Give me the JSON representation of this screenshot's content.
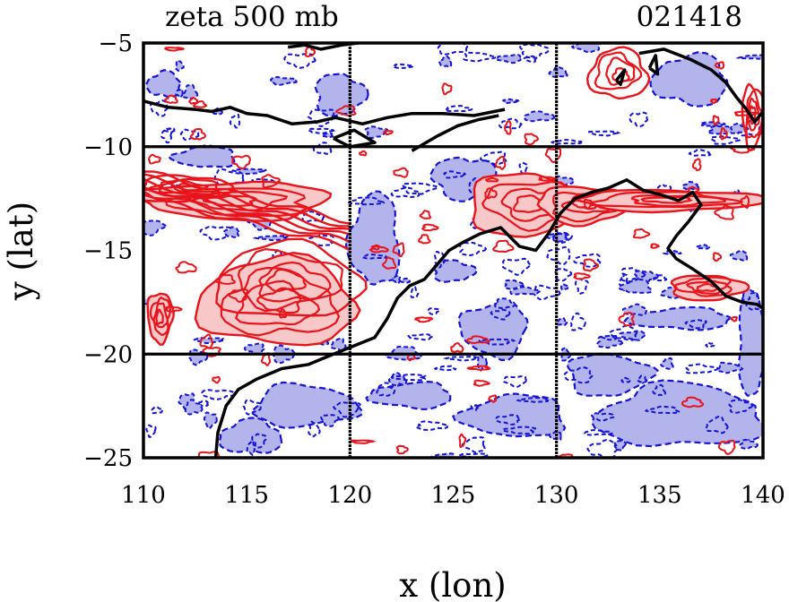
{
  "chart_data": {
    "type": "contour",
    "title_left": "zeta 500 mb",
    "title_right": "021418",
    "xlabel": "x (lon)",
    "ylabel": "y (lat)",
    "xlim": [
      110,
      140
    ],
    "ylim": [
      -25,
      -5
    ],
    "xticks": [
      110,
      115,
      120,
      125,
      130,
      135,
      140
    ],
    "yticks": [
      -5,
      -10,
      -15,
      -20,
      -25
    ],
    "xtick_labels": [
      "110",
      "115",
      "120",
      "125",
      "130",
      "135",
      "140"
    ],
    "ytick_labels": [
      "−5",
      "−10",
      "−15",
      "−20",
      "−25"
    ],
    "grid_x": [
      120,
      130
    ],
    "grid_y": [
      -10,
      -20
    ],
    "colors": {
      "positive_fill": "#f8c8c8",
      "positive_line": "#e8141c",
      "negative_fill": "#b4b4ec",
      "negative_line": "#1414d2",
      "coastline": "#000000",
      "grid": "#000000"
    },
    "coastline": {
      "north": [
        [
          110,
          -7.8
        ],
        [
          111.2,
          -8.1
        ],
        [
          112.5,
          -8.2
        ],
        [
          113.3,
          -8.3
        ],
        [
          114.2,
          -8.1
        ],
        [
          115,
          -8.4
        ],
        [
          116,
          -8.5
        ],
        [
          117.2,
          -8.9
        ],
        [
          118.4,
          -8.8
        ],
        [
          119.3,
          -8.6
        ],
        [
          120.6,
          -8.9
        ],
        [
          121.8,
          -8.6
        ],
        [
          123,
          -8.4
        ],
        [
          124.5,
          -8.4
        ],
        [
          126,
          -8.5
        ],
        [
          127.5,
          -8.2
        ]
      ],
      "north_upper": [
        [
          117,
          -5.2
        ],
        [
          117.8,
          -5.1
        ],
        [
          118.6,
          -5.3
        ],
        [
          119.6,
          -5.1
        ],
        [
          120.4,
          -5.0
        ]
      ],
      "timor": [
        [
          123,
          -10.2
        ],
        [
          124.2,
          -9.5
        ],
        [
          125.2,
          -9.0
        ],
        [
          126.2,
          -8.7
        ],
        [
          127.2,
          -8.5
        ]
      ],
      "sumba": [
        [
          119.2,
          -9.6
        ],
        [
          120.2,
          -9.2
        ],
        [
          121.2,
          -9.8
        ],
        [
          120.0,
          -10.0
        ],
        [
          119.2,
          -9.6
        ]
      ],
      "new_guinea": [
        [
          134,
          -5.5
        ],
        [
          135.2,
          -5.3
        ],
        [
          136.5,
          -5.8
        ],
        [
          137.5,
          -6.3
        ],
        [
          138.2,
          -6.9
        ],
        [
          138.7,
          -7.6
        ],
        [
          139.2,
          -8.2
        ],
        [
          139.6,
          -8.8
        ],
        [
          140,
          -8.3
        ]
      ],
      "isle_a": [
        [
          134.5,
          -6.2
        ],
        [
          134.8,
          -5.6
        ],
        [
          134.9,
          -6.5
        ],
        [
          134.5,
          -6.2
        ]
      ],
      "isle_b": [
        [
          132.9,
          -6.8
        ],
        [
          133.3,
          -6.3
        ],
        [
          133.1,
          -7.0
        ],
        [
          132.9,
          -6.8
        ]
      ],
      "australia": [
        [
          113.5,
          -25
        ],
        [
          113.6,
          -23.8
        ],
        [
          114,
          -22.5
        ],
        [
          114.6,
          -21.7
        ],
        [
          115.5,
          -21.2
        ],
        [
          116.7,
          -20.7
        ],
        [
          118,
          -20.5
        ],
        [
          119.2,
          -20.0
        ],
        [
          120.2,
          -19.6
        ],
        [
          121.2,
          -19.2
        ],
        [
          121.8,
          -18.3
        ],
        [
          122.3,
          -17.3
        ],
        [
          122.9,
          -16.7
        ],
        [
          123.6,
          -16.4
        ],
        [
          124.2,
          -15.7
        ],
        [
          124.8,
          -15.0
        ],
        [
          125.5,
          -14.6
        ],
        [
          126.3,
          -14.2
        ],
        [
          127.3,
          -13.9
        ],
        [
          128.2,
          -14.8
        ],
        [
          129,
          -15.0
        ],
        [
          129.6,
          -14.2
        ],
        [
          130.2,
          -13.2
        ],
        [
          130.9,
          -12.5
        ],
        [
          131.7,
          -12.2
        ],
        [
          132.5,
          -12.0
        ],
        [
          133.4,
          -11.6
        ],
        [
          134.2,
          -12.1
        ],
        [
          135,
          -12.3
        ],
        [
          135.9,
          -12.6
        ],
        [
          136.6,
          -12.2
        ],
        [
          137,
          -12.8
        ],
        [
          136.4,
          -13.6
        ],
        [
          135.8,
          -14.3
        ],
        [
          135.4,
          -14.9
        ],
        [
          135.8,
          -15.4
        ],
        [
          136.6,
          -15.9
        ],
        [
          137.5,
          -16.5
        ],
        [
          138.2,
          -17.2
        ],
        [
          139,
          -17.5
        ],
        [
          139.7,
          -17.6
        ],
        [
          140,
          -17.8
        ]
      ]
    },
    "positive_regions": [
      {
        "cx": 116.5,
        "cy": -17.5,
        "rx": 3.8,
        "ry": 2.1,
        "filled": true
      },
      {
        "cx": 117,
        "cy": -16.5,
        "rx": 3.5,
        "ry": 1.8,
        "filled": false
      },
      {
        "cx": 114.5,
        "cy": -12.6,
        "rx": 4.5,
        "ry": 0.9,
        "filled": true
      },
      {
        "cx": 112,
        "cy": -12.0,
        "rx": 2.2,
        "ry": 0.6,
        "filled": false
      },
      {
        "cx": 110.8,
        "cy": -18.2,
        "rx": 0.6,
        "ry": 1.2,
        "filled": true
      },
      {
        "cx": 128.5,
        "cy": -12.8,
        "rx": 2.8,
        "ry": 1.5,
        "filled": true
      },
      {
        "cx": 131.3,
        "cy": -12.8,
        "rx": 2.2,
        "ry": 0.9,
        "filled": true
      },
      {
        "cx": 135.5,
        "cy": -12.6,
        "rx": 4.5,
        "ry": 0.5,
        "filled": true
      },
      {
        "cx": 137.3,
        "cy": -16.8,
        "rx": 1.8,
        "ry": 0.6,
        "filled": true
      },
      {
        "cx": 133,
        "cy": -6.5,
        "rx": 1.4,
        "ry": 1.2,
        "filled": false
      },
      {
        "cx": 139.5,
        "cy": -8.5,
        "rx": 0.5,
        "ry": 1.5,
        "filled": false
      }
    ],
    "negative_regions": [
      {
        "cx": 127,
        "cy": -18.8,
        "rx": 1.6,
        "ry": 1.3
      },
      {
        "cx": 136,
        "cy": -23.0,
        "rx": 4.0,
        "ry": 1.5
      },
      {
        "cx": 117.8,
        "cy": -22.5,
        "rx": 2.5,
        "ry": 1.0
      },
      {
        "cx": 128,
        "cy": -23.0,
        "rx": 2.5,
        "ry": 1.0
      },
      {
        "cx": 123,
        "cy": -22.0,
        "rx": 2.0,
        "ry": 0.6
      },
      {
        "cx": 139.5,
        "cy": -19.5,
        "rx": 0.7,
        "ry": 2.5
      },
      {
        "cx": 121.2,
        "cy": -14.5,
        "rx": 1.2,
        "ry": 2.2
      },
      {
        "cx": 125.5,
        "cy": -11.5,
        "rx": 1.5,
        "ry": 1.0
      },
      {
        "cx": 119.5,
        "cy": -7.5,
        "rx": 1.2,
        "ry": 1.0
      },
      {
        "cx": 111,
        "cy": -7.0,
        "rx": 0.8,
        "ry": 0.6
      },
      {
        "cx": 136.5,
        "cy": -6.8,
        "rx": 1.8,
        "ry": 1.2
      },
      {
        "cx": 132.5,
        "cy": -21.0,
        "rx": 2.0,
        "ry": 1.0
      },
      {
        "cx": 115.2,
        "cy": -24.0,
        "rx": 1.5,
        "ry": 0.8
      },
      {
        "cx": 125,
        "cy": -16.0,
        "rx": 1.0,
        "ry": 0.5
      },
      {
        "cx": 136,
        "cy": -18.3,
        "rx": 2.5,
        "ry": 0.5
      },
      {
        "cx": 113,
        "cy": -10.5,
        "rx": 1.5,
        "ry": 0.5
      }
    ]
  }
}
